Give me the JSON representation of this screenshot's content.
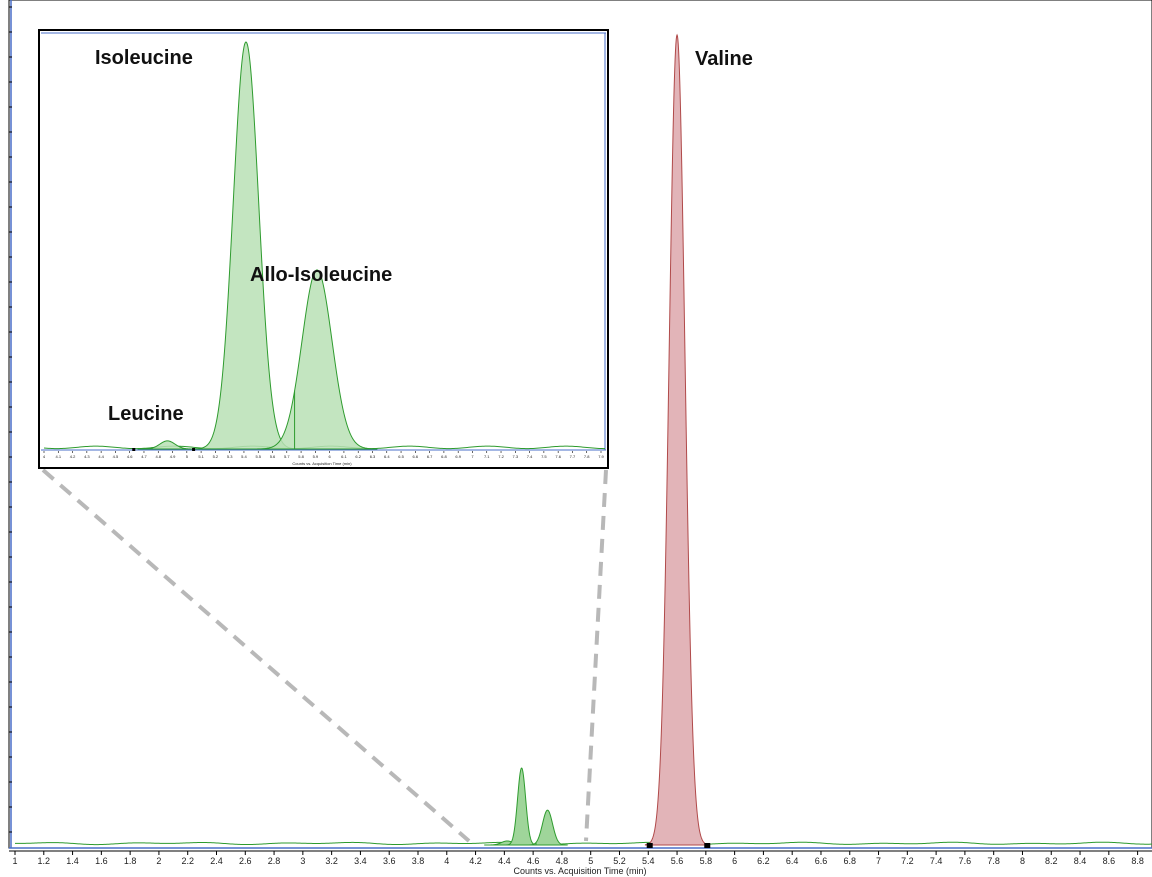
{
  "chart_data": {
    "type": "area",
    "xlabel": "Counts vs. Acquisition Time (min)",
    "xlim": [
      1,
      8.9
    ],
    "x_ticks": [
      "1",
      "1.2",
      "1.4",
      "1.6",
      "1.8",
      "2",
      "2.2",
      "2.4",
      "2.6",
      "2.8",
      "3",
      "3.2",
      "3.4",
      "3.6",
      "3.8",
      "4",
      "4.2",
      "4.4",
      "4.6",
      "4.8",
      "5",
      "5.2",
      "5.4",
      "5.6",
      "5.8",
      "6",
      "6.2",
      "6.4",
      "6.6",
      "6.8",
      "7",
      "7.2",
      "7.4",
      "7.6",
      "7.8",
      "8",
      "8.2",
      "8.4",
      "8.6",
      "8.8"
    ],
    "ylim": [
      0,
      1
    ],
    "grid": false,
    "series": [
      {
        "name": "Leucine",
        "color": "#2e9b2e",
        "fill": "#9fd59a",
        "peak": {
          "rt": 4.42,
          "height": 0.005,
          "width": 0.04
        }
      },
      {
        "name": "Isoleucine",
        "color": "#2e9b2e",
        "fill": "#9fd59a",
        "peak": {
          "rt": 4.52,
          "height": 0.095,
          "width": 0.028
        }
      },
      {
        "name": "Allo-Isoleucine",
        "color": "#2e9b2e",
        "fill": "#9fd59a",
        "peak": {
          "rt": 4.7,
          "height": 0.043,
          "width": 0.035
        }
      },
      {
        "name": "Valine",
        "color": "#b04a4a",
        "fill": "#e2b4b8",
        "peak": {
          "rt": 5.6,
          "height": 1.0,
          "width": 0.055
        },
        "integration_window": [
          5.41,
          5.81
        ]
      }
    ],
    "annotations": [
      {
        "text": "Valine"
      },
      {
        "text": "Isoleucine"
      },
      {
        "text": "Allo-Isoleucine"
      },
      {
        "text": "Leucine"
      }
    ],
    "inset": {
      "xlim": [
        4.25,
        5.0
      ],
      "ylim": [
        0,
        1
      ],
      "x_ticks": [
        "4",
        "4.1",
        "4.2",
        "4.3",
        "4.4",
        "4.5",
        "4.6",
        "4.7",
        "4.8",
        "4.9",
        "5",
        "5.1",
        "5.2",
        "5.3",
        "5.4",
        "5.5",
        "5.6",
        "5.7",
        "5.8",
        "5.9",
        "6",
        "6.1",
        "6.2",
        "6.3",
        "6.4",
        "6.5",
        "6.6",
        "6.7",
        "6.8",
        "6.9",
        "7",
        "7.1",
        "7.2",
        "7.3",
        "7.4",
        "7.5",
        "7.6",
        "7.7",
        "7.8",
        "7.9"
      ],
      "xlabel": "Counts vs. Acquisition Time (min)",
      "series": [
        {
          "name": "Leucine",
          "peak": {
            "rt": 4.415,
            "height": 0.02,
            "width": 0.01
          }
        },
        {
          "name": "Isoleucine",
          "peak": {
            "rt": 4.52,
            "height": 1.0,
            "width": 0.017
          }
        },
        {
          "name": "Allo-Isoleucine",
          "peak": {
            "rt": 4.615,
            "height": 0.44,
            "width": 0.02
          }
        }
      ],
      "integration_window": [
        4.37,
        4.45
      ]
    }
  }
}
